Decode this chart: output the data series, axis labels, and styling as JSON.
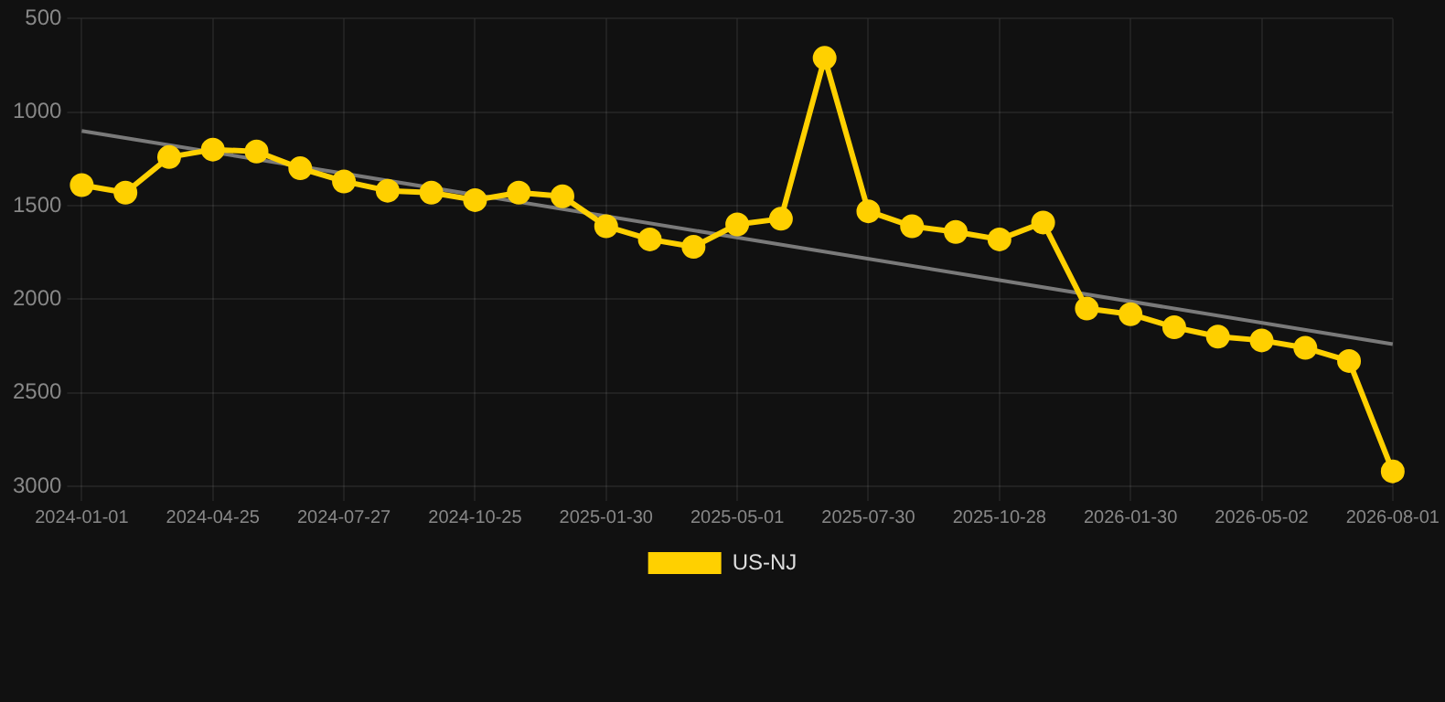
{
  "chart_data": {
    "type": "line",
    "categories": [
      "2024-01-01",
      null,
      null,
      "2024-04-25",
      null,
      null,
      "2024-07-27",
      null,
      null,
      "2024-10-25",
      null,
      null,
      "2025-01-30",
      null,
      null,
      "2025-05-01",
      null,
      null,
      "2025-07-30",
      null,
      null,
      "2025-10-28",
      null,
      null,
      "2026-01-30",
      null,
      null,
      "2026-05-02",
      null,
      null,
      "2026-08-01"
    ],
    "series": [
      {
        "name": "US-NJ",
        "color": "#ffd000",
        "marker": "circle",
        "values": [
          1390,
          1430,
          1240,
          1200,
          1210,
          1300,
          1370,
          1420,
          1430,
          1470,
          1430,
          1450,
          1610,
          1680,
          1720,
          1600,
          1570,
          710,
          1530,
          1610,
          1640,
          1680,
          1590,
          2050,
          2080,
          2150,
          2200,
          2220,
          2260,
          2330,
          2920
        ]
      },
      {
        "color": "#7a7a7a",
        "marker": "none",
        "values": [
          1100,
          null,
          null,
          null,
          null,
          null,
          null,
          null,
          null,
          null,
          null,
          null,
          null,
          null,
          null,
          null,
          null,
          null,
          null,
          null,
          null,
          null,
          null,
          null,
          null,
          null,
          null,
          null,
          null,
          null,
          2240
        ]
      }
    ],
    "ylim": [
      3000,
      500
    ],
    "yticks": [
      500,
      1000,
      1500,
      2000,
      2500,
      3000
    ],
    "grid": true,
    "legend": "bottom"
  }
}
